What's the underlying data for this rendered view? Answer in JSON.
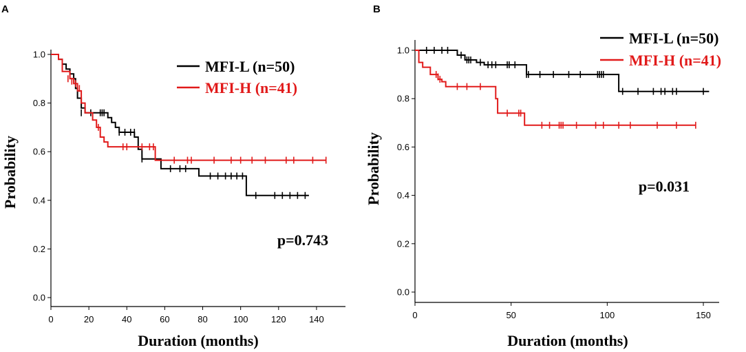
{
  "chart_data": [
    {
      "panel": "A",
      "type": "line",
      "subtype": "kaplan-meier",
      "xlabel": "Duration (months)",
      "ylabel": "Probability",
      "xlim": [
        0,
        150
      ],
      "ylim": [
        0,
        1.0
      ],
      "xticks": [
        0,
        20,
        40,
        60,
        80,
        100,
        120,
        140
      ],
      "yticks": [
        0.0,
        0.2,
        0.4,
        0.6,
        0.8,
        1.0
      ],
      "xtick_labels": [
        "0",
        "20",
        "40",
        "60",
        "80",
        "100",
        "120",
        "140"
      ],
      "ytick_labels": [
        "0.0",
        "0.2",
        "0.4",
        "0.6",
        "0.8",
        "1.0"
      ],
      "annotation": "p=0.743",
      "legend_position": "top-right",
      "series": [
        {
          "name": "MFI-L (n=50)",
          "color": "#000000",
          "steps": [
            [
              0,
              1.0
            ],
            [
              4,
              0.98
            ],
            [
              6,
              0.96
            ],
            [
              8,
              0.94
            ],
            [
              10,
              0.92
            ],
            [
              12,
              0.9
            ],
            [
              13,
              0.86
            ],
            [
              14,
              0.82
            ],
            [
              16,
              0.78
            ],
            [
              18,
              0.76
            ],
            [
              28,
              0.76
            ],
            [
              30,
              0.74
            ],
            [
              32,
              0.72
            ],
            [
              34,
              0.7
            ],
            [
              36,
              0.68
            ],
            [
              44,
              0.66
            ],
            [
              46,
              0.61
            ],
            [
              48,
              0.57
            ],
            [
              56,
              0.57
            ],
            [
              58,
              0.53
            ],
            [
              76,
              0.53
            ],
            [
              78,
              0.5
            ],
            [
              102,
              0.5
            ],
            [
              103,
              0.42
            ],
            [
              136,
              0.42
            ]
          ],
          "censors": [
            [
              16,
              0.76
            ],
            [
              21,
              0.76
            ],
            [
              26,
              0.76
            ],
            [
              27,
              0.76
            ],
            [
              28,
              0.76
            ],
            [
              36,
              0.68
            ],
            [
              39,
              0.68
            ],
            [
              42,
              0.68
            ],
            [
              44,
              0.68
            ],
            [
              48,
              0.57
            ],
            [
              63,
              0.53
            ],
            [
              68,
              0.53
            ],
            [
              71,
              0.53
            ],
            [
              84,
              0.5
            ],
            [
              88,
              0.5
            ],
            [
              92,
              0.5
            ],
            [
              95,
              0.5
            ],
            [
              98,
              0.5
            ],
            [
              101,
              0.5
            ],
            [
              108,
              0.42
            ],
            [
              118,
              0.42
            ],
            [
              122,
              0.42
            ],
            [
              126,
              0.42
            ],
            [
              130,
              0.42
            ],
            [
              134,
              0.42
            ]
          ]
        },
        {
          "name": "MFI-H (n=41)",
          "color": "#e11a1a",
          "steps": [
            [
              0,
              1.0
            ],
            [
              4,
              0.98
            ],
            [
              6,
              0.93
            ],
            [
              10,
              0.9
            ],
            [
              12,
              0.88
            ],
            [
              14,
              0.85
            ],
            [
              16,
              0.8
            ],
            [
              18,
              0.76
            ],
            [
              22,
              0.73
            ],
            [
              24,
              0.7
            ],
            [
              26,
              0.66
            ],
            [
              28,
              0.64
            ],
            [
              30,
              0.62
            ],
            [
              33,
              0.62
            ],
            [
              35,
              0.62
            ],
            [
              48,
              0.62
            ],
            [
              50,
              0.62
            ],
            [
              54,
              0.62
            ],
            [
              55,
              0.565
            ],
            [
              145,
              0.565
            ]
          ],
          "censors": [
            [
              9,
              0.9
            ],
            [
              11,
              0.89
            ],
            [
              13,
              0.88
            ],
            [
              15,
              0.86
            ],
            [
              25,
              0.7
            ],
            [
              38,
              0.62
            ],
            [
              40,
              0.62
            ],
            [
              48,
              0.62
            ],
            [
              52,
              0.62
            ],
            [
              54,
              0.62
            ],
            [
              65,
              0.565
            ],
            [
              72,
              0.565
            ],
            [
              74,
              0.565
            ],
            [
              86,
              0.565
            ],
            [
              95,
              0.565
            ],
            [
              100,
              0.565
            ],
            [
              106,
              0.565
            ],
            [
              113,
              0.565
            ],
            [
              124,
              0.565
            ],
            [
              128,
              0.565
            ],
            [
              138,
              0.565
            ],
            [
              145,
              0.565
            ]
          ]
        }
      ]
    },
    {
      "panel": "B",
      "type": "line",
      "subtype": "kaplan-meier",
      "xlabel": "Duration (months)",
      "ylabel": "Probability",
      "xlim": [
        0,
        155
      ],
      "ylim": [
        0,
        1.0
      ],
      "xticks": [
        0,
        50,
        100,
        150
      ],
      "yticks": [
        0.0,
        0.2,
        0.4,
        0.6,
        0.8,
        1.0
      ],
      "xtick_labels": [
        "0",
        "50",
        "100",
        "150"
      ],
      "ytick_labels": [
        "0.0",
        "0.2",
        "0.4",
        "0.6",
        "0.8",
        "1.0"
      ],
      "annotation": "p=0.031",
      "legend_position": "top-right",
      "series": [
        {
          "name": "MFI-L (n=50)",
          "color": "#000000",
          "steps": [
            [
              0,
              1.0
            ],
            [
              20,
              1.0
            ],
            [
              22,
              0.98
            ],
            [
              26,
              0.96
            ],
            [
              32,
              0.95
            ],
            [
              36,
              0.94
            ],
            [
              56,
              0.94
            ],
            [
              58,
              0.9
            ],
            [
              104,
              0.9
            ],
            [
              106,
              0.83
            ],
            [
              153,
              0.83
            ]
          ],
          "censors": [
            [
              6,
              1.0
            ],
            [
              10,
              1.0
            ],
            [
              14,
              1.0
            ],
            [
              17,
              1.0
            ],
            [
              24,
              0.98
            ],
            [
              27,
              0.96
            ],
            [
              28,
              0.96
            ],
            [
              29,
              0.96
            ],
            [
              34,
              0.95
            ],
            [
              38,
              0.94
            ],
            [
              40,
              0.94
            ],
            [
              42,
              0.94
            ],
            [
              48,
              0.94
            ],
            [
              49,
              0.94
            ],
            [
              52,
              0.94
            ],
            [
              58,
              0.9
            ],
            [
              59,
              0.9
            ],
            [
              65,
              0.9
            ],
            [
              72,
              0.9
            ],
            [
              80,
              0.9
            ],
            [
              86,
              0.9
            ],
            [
              95,
              0.9
            ],
            [
              96,
              0.9
            ],
            [
              97,
              0.9
            ],
            [
              98,
              0.9
            ],
            [
              108,
              0.83
            ],
            [
              116,
              0.83
            ],
            [
              124,
              0.83
            ],
            [
              128,
              0.83
            ],
            [
              130,
              0.83
            ],
            [
              134,
              0.83
            ],
            [
              136,
              0.83
            ],
            [
              150,
              0.83
            ]
          ]
        },
        {
          "name": "MFI-H (n=41)",
          "color": "#e11a1a",
          "steps": [
            [
              0,
              1.0
            ],
            [
              2,
              0.95
            ],
            [
              4,
              0.93
            ],
            [
              8,
              0.9
            ],
            [
              12,
              0.88
            ],
            [
              14,
              0.87
            ],
            [
              16,
              0.85
            ],
            [
              41,
              0.85
            ],
            [
              42,
              0.8
            ],
            [
              43,
              0.74
            ],
            [
              56,
              0.74
            ],
            [
              57,
              0.69
            ],
            [
              146,
              0.69
            ]
          ],
          "censors": [
            [
              11,
              0.9
            ],
            [
              12,
              0.89
            ],
            [
              13,
              0.88
            ],
            [
              22,
              0.85
            ],
            [
              27,
              0.85
            ],
            [
              34,
              0.85
            ],
            [
              48,
              0.74
            ],
            [
              54,
              0.74
            ],
            [
              55,
              0.74
            ],
            [
              66,
              0.69
            ],
            [
              70,
              0.69
            ],
            [
              75,
              0.69
            ],
            [
              76,
              0.69
            ],
            [
              77,
              0.69
            ],
            [
              84,
              0.69
            ],
            [
              94,
              0.69
            ],
            [
              98,
              0.69
            ],
            [
              106,
              0.69
            ],
            [
              112,
              0.69
            ],
            [
              126,
              0.69
            ],
            [
              136,
              0.69
            ],
            [
              146,
              0.69
            ]
          ]
        }
      ]
    }
  ]
}
